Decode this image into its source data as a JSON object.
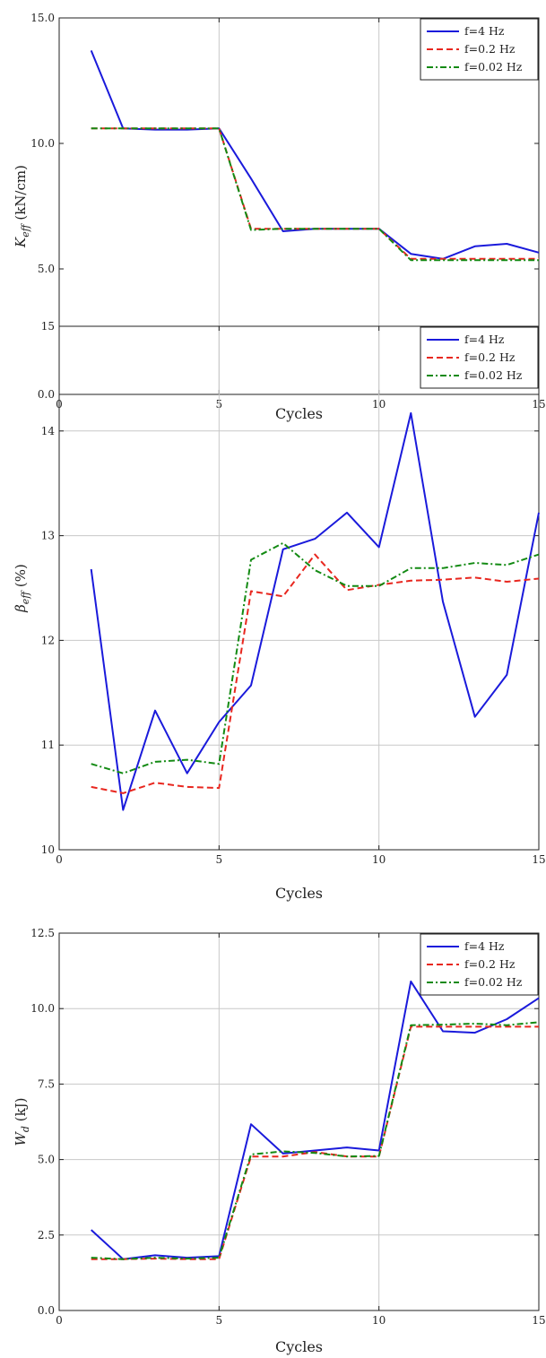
{
  "chart_data": [
    {
      "type": "line",
      "xlabel": "Cycles",
      "ylabel_main": "K",
      "ylabel_sub": "eff",
      "ylabel_unit": "(kN/cm)",
      "xlim": [
        0,
        15
      ],
      "ylim": [
        0,
        15
      ],
      "xticks": [
        0,
        5,
        10,
        15
      ],
      "xtick_labels": [
        "0",
        "5",
        "10",
        "15"
      ],
      "yticks": [
        0,
        5,
        10,
        15
      ],
      "ytick_labels": [
        "0.0",
        "5.0",
        "10.0",
        "15.0"
      ],
      "grid": "x-major",
      "legend": "top-right",
      "x": [
        1,
        2,
        3,
        4,
        5,
        6,
        7,
        8,
        9,
        10,
        11,
        12,
        13,
        14,
        15
      ],
      "series": [
        {
          "name": "f=4 Hz",
          "color": "#1a1adb",
          "dash": "solid",
          "values": [
            13.7,
            10.6,
            10.55,
            10.55,
            10.6,
            8.6,
            6.5,
            6.6,
            6.6,
            6.6,
            5.6,
            5.4,
            5.9,
            6.0,
            5.65
          ]
        },
        {
          "name": "f=0.2 Hz",
          "color": "#e8271f",
          "dash": "dashed",
          "values": [
            10.6,
            10.6,
            10.6,
            10.6,
            10.6,
            6.6,
            6.6,
            6.6,
            6.6,
            6.6,
            5.4,
            5.4,
            5.4,
            5.4,
            5.4
          ]
        },
        {
          "name": "f=0.02 Hz",
          "color": "#138a13",
          "dash": "dashdot",
          "values": [
            10.6,
            10.6,
            10.6,
            10.6,
            10.6,
            6.55,
            6.6,
            6.6,
            6.6,
            6.6,
            5.35,
            5.35,
            5.35,
            5.35,
            5.35
          ]
        }
      ]
    },
    {
      "type": "line",
      "xlabel": "Cycles",
      "ylabel_main": "β",
      "ylabel_sub": "eff",
      "ylabel_unit": "(%)",
      "xlim": [
        0,
        15
      ],
      "ylim": [
        10,
        15
      ],
      "xticks": [
        0,
        5,
        10,
        15
      ],
      "xtick_labels": [
        "0",
        "5",
        "10",
        "15"
      ],
      "yticks": [
        10,
        11,
        12,
        13,
        14,
        15
      ],
      "ytick_labels": [
        "10",
        "11",
        "12",
        "13",
        "14",
        "15"
      ],
      "grid": "both",
      "legend": "top-right",
      "x": [
        1,
        2,
        3,
        4,
        5,
        6,
        7,
        8,
        9,
        10,
        11,
        12,
        13,
        14,
        15
      ],
      "series": [
        {
          "name": "f=4 Hz",
          "color": "#1a1adb",
          "dash": "solid",
          "values": [
            12.68,
            10.38,
            11.33,
            10.73,
            11.22,
            11.57,
            12.87,
            12.97,
            13.22,
            12.89,
            14.17,
            12.37,
            11.27,
            11.67,
            13.22
          ]
        },
        {
          "name": "f=0.2 Hz",
          "color": "#e8271f",
          "dash": "dashed",
          "values": [
            10.6,
            10.54,
            10.64,
            10.6,
            10.59,
            12.47,
            12.42,
            12.82,
            12.48,
            12.53,
            12.57,
            12.58,
            12.6,
            12.56,
            12.59
          ]
        },
        {
          "name": "f=0.02 Hz",
          "color": "#138a13",
          "dash": "dashdot",
          "values": [
            10.82,
            10.73,
            10.84,
            10.86,
            10.82,
            12.77,
            12.93,
            12.67,
            12.52,
            12.52,
            12.69,
            12.69,
            12.74,
            12.72,
            12.82
          ]
        }
      ]
    },
    {
      "type": "line",
      "xlabel": "Cycles",
      "ylabel_main": "W",
      "ylabel_sub": "d",
      "ylabel_unit": "(kJ)",
      "xlim": [
        0,
        15
      ],
      "ylim": [
        0,
        12.5
      ],
      "xticks": [
        0,
        5,
        10,
        15
      ],
      "xtick_labels": [
        "0",
        "5",
        "10",
        "15"
      ],
      "yticks": [
        0,
        2.5,
        5,
        7.5,
        10,
        12.5
      ],
      "ytick_labels": [
        "0.0",
        "2.5",
        "5.0",
        "7.5",
        "10.0",
        "12.5"
      ],
      "grid": "both",
      "legend": "top-right",
      "x": [
        1,
        2,
        3,
        4,
        5,
        6,
        7,
        8,
        9,
        10,
        11,
        12,
        13,
        14,
        15
      ],
      "series": [
        {
          "name": "f=4 Hz",
          "color": "#1a1adb",
          "dash": "solid",
          "values": [
            2.67,
            1.7,
            1.83,
            1.75,
            1.8,
            6.17,
            5.2,
            5.3,
            5.4,
            5.3,
            10.9,
            9.25,
            9.2,
            9.65,
            10.35
          ]
        },
        {
          "name": "f=0.2 Hz",
          "color": "#e8271f",
          "dash": "dashed",
          "values": [
            1.7,
            1.7,
            1.72,
            1.7,
            1.7,
            5.1,
            5.1,
            5.25,
            5.1,
            5.1,
            9.4,
            9.4,
            9.4,
            9.4,
            9.4
          ]
        },
        {
          "name": "f=0.02 Hz",
          "color": "#138a13",
          "dash": "dashdot",
          "values": [
            1.75,
            1.7,
            1.75,
            1.72,
            1.75,
            5.17,
            5.27,
            5.22,
            5.1,
            5.12,
            9.45,
            9.47,
            9.5,
            9.45,
            9.55
          ]
        }
      ]
    }
  ]
}
